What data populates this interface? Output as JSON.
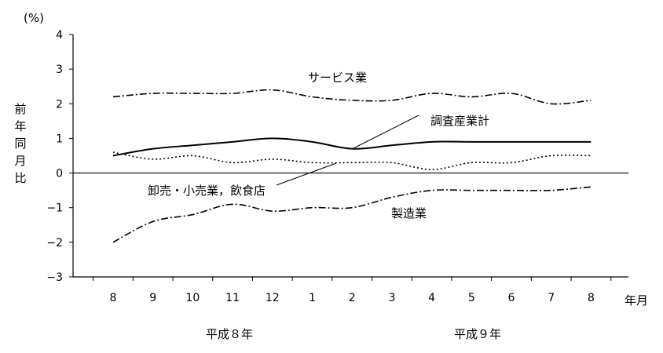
{
  "chart_data": {
    "type": "line",
    "unit_label": "(%)",
    "ylabel": "前年同月比",
    "xlabel": "年月",
    "ylim": [
      -3,
      4
    ],
    "yticks": [
      "4",
      "3",
      "2",
      "1",
      "0",
      "-1",
      "-2",
      "-3"
    ],
    "categories": [
      "8",
      "9",
      "10",
      "11",
      "12",
      "1",
      "2",
      "3",
      "4",
      "5",
      "6",
      "7",
      "8"
    ],
    "year_labels": [
      "平成８年",
      "平成９年"
    ],
    "series": [
      {
        "name": "サービス業",
        "style": "dash-dot",
        "values": [
          2.2,
          2.3,
          2.3,
          2.3,
          2.4,
          2.2,
          2.1,
          2.1,
          2.3,
          2.2,
          2.3,
          2.0,
          2.1
        ]
      },
      {
        "name": "調査産業計",
        "style": "solid",
        "values": [
          0.5,
          0.7,
          0.8,
          0.9,
          1.0,
          0.9,
          0.7,
          0.8,
          0.9,
          0.9,
          0.9,
          0.9,
          0.9
        ]
      },
      {
        "name": "卸売・小売業，飲食店",
        "style": "dotted",
        "values": [
          0.6,
          0.4,
          0.5,
          0.3,
          0.4,
          0.3,
          0.3,
          0.3,
          0.1,
          0.3,
          0.3,
          0.5,
          0.5
        ]
      },
      {
        "name": "製造業",
        "style": "dash-dot",
        "values": [
          -2.0,
          -1.4,
          -1.2,
          -0.9,
          -1.1,
          -1.0,
          -1.0,
          -0.7,
          -0.5,
          -0.5,
          -0.5,
          -0.5,
          -0.4
        ]
      }
    ]
  }
}
